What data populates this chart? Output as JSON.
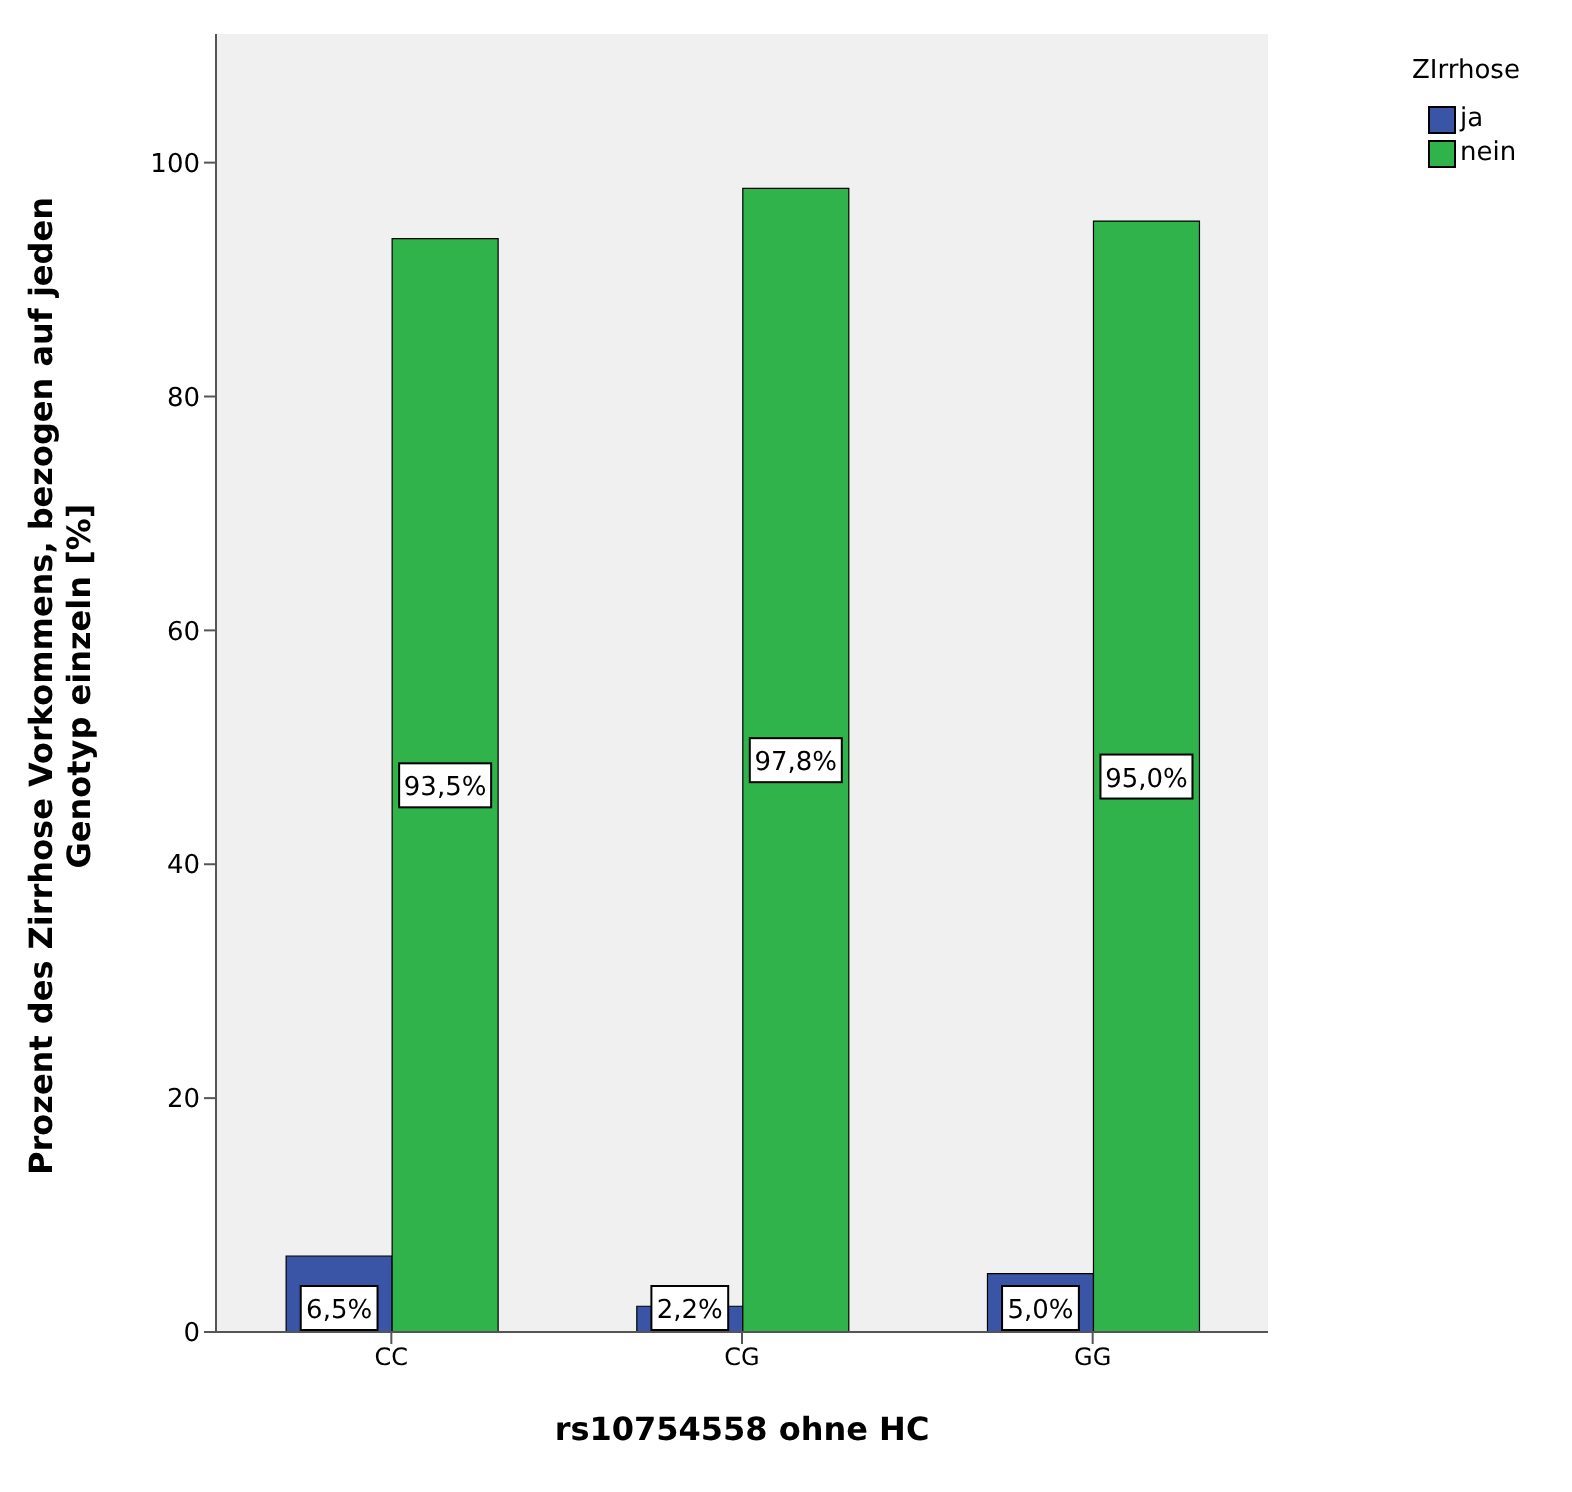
{
  "chart_data": {
    "type": "bar",
    "categories": [
      "CC",
      "CG",
      "GG"
    ],
    "series": [
      {
        "name": "ja",
        "color": "#3a55a5",
        "values": [
          6.5,
          2.2,
          5.0
        ],
        "value_labels": [
          "6,5%",
          "2,2%",
          "5,0%"
        ]
      },
      {
        "name": "nein",
        "color": "#2fb34a",
        "values": [
          93.5,
          97.8,
          95.0
        ],
        "value_labels": [
          "93,5%",
          "97,8%",
          "95,0%"
        ]
      }
    ],
    "xlabel": "rs10754558 ohne HC",
    "ylabel": "Prozent des Zirrhose Vorkommens, bezogen auf jeden Genotyp einzeln [%]",
    "legend_title": "ZIrrhose",
    "legend": "top right",
    "ylim": [
      0,
      111
    ],
    "yticks": [
      0,
      20,
      40,
      60,
      80,
      100
    ],
    "grid": false
  }
}
